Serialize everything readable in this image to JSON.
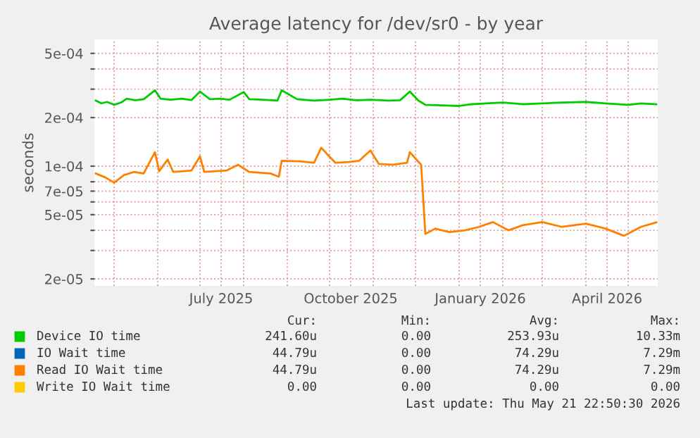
{
  "chart_data": {
    "type": "line",
    "title": "Average latency for /dev/sr0 - by year",
    "ylabel": "seconds",
    "log": "y",
    "grid": true,
    "legend": "bottom",
    "line_style": "solid",
    "marker": "none",
    "x": [
      "2025-04-18",
      "2025-04-22",
      "2025-04-26",
      "2025-05-01",
      "2025-05-06",
      "2025-05-10",
      "2025-05-16",
      "2025-05-22",
      "2025-05-30",
      "2025-06-03",
      "2025-06-10",
      "2025-06-18",
      "2025-06-25",
      "2025-07-01",
      "2025-07-08",
      "2025-07-15",
      "2025-07-22",
      "2025-08-01",
      "2025-08-05",
      "2025-08-15",
      "2025-08-25",
      "2025-08-28",
      "2025-09-08",
      "2025-09-20",
      "2025-10-01",
      "2025-10-10",
      "2025-10-20",
      "2025-10-30",
      "2025-11-12",
      "2025-11-20",
      "2025-11-27",
      "2025-12-03",
      "2025-12-08",
      "2025-12-20",
      "2026-01-01",
      "2026-01-10",
      "2026-01-20",
      "2026-02-01",
      "2026-02-15",
      "2026-03-01",
      "2026-03-15",
      "2026-04-01",
      "2026-04-15",
      "2026-05-01",
      "2026-05-10",
      "2026-05-21"
    ],
    "series": [
      {
        "name": "Device IO time",
        "color": "#00cc00",
        "values": [
          0.000255,
          0.000245,
          0.00025,
          0.00024,
          0.000248,
          0.000262,
          0.000256,
          0.00026,
          0.000295,
          0.000262,
          0.000258,
          0.000262,
          0.000257,
          0.00029,
          0.00026,
          0.000262,
          0.000258,
          0.000288,
          0.00026,
          0.000258,
          0.000255,
          0.000295,
          0.00026,
          0.000255,
          0.000258,
          0.000262,
          0.000256,
          0.000258,
          0.000255,
          0.000256,
          0.00029,
          0.000255,
          0.00024,
          0.000238,
          0.000236,
          0.000242,
          0.000245,
          0.000248,
          0.000242,
          0.000245,
          0.000248,
          0.00025,
          0.000245,
          0.00024,
          0.000245,
          0.000242
        ]
      },
      {
        "name": "IO Wait time",
        "color": "#0066b3",
        "values": [
          null,
          null,
          null,
          null,
          null,
          null,
          null,
          null,
          null,
          null,
          null,
          null,
          null,
          null,
          null,
          null,
          null,
          null,
          null,
          null,
          null,
          null,
          null,
          null,
          null,
          null,
          null,
          null,
          null,
          null,
          null,
          null,
          null,
          null,
          null,
          null,
          null,
          null,
          null,
          null,
          null,
          null,
          null,
          null,
          null,
          null
        ]
      },
      {
        "name": "Read IO Wait time",
        "color": "#ff8000",
        "x": [
          "2025-04-18",
          "2025-04-25",
          "2025-05-01",
          "2025-05-08",
          "2025-05-15",
          "2025-05-22",
          "2025-05-30",
          "2025-06-02",
          "2025-06-08",
          "2025-06-12",
          "2025-06-25",
          "2025-07-01",
          "2025-07-04",
          "2025-07-20",
          "2025-07-28",
          "2025-08-05",
          "2025-08-20",
          "2025-08-26",
          "2025-08-28",
          "2025-09-10",
          "2025-09-20",
          "2025-09-25",
          "2025-10-05",
          "2025-10-15",
          "2025-10-22",
          "2025-10-30",
          "2025-11-05",
          "2025-11-15",
          "2025-11-25",
          "2025-11-27",
          "2025-12-05",
          "2025-12-08",
          "2025-12-15",
          "2025-12-25",
          "2026-01-05",
          "2026-01-15",
          "2026-01-25",
          "2026-02-05",
          "2026-02-15",
          "2026-03-01",
          "2026-03-15",
          "2026-04-01",
          "2026-04-15",
          "2026-04-28",
          "2026-05-10",
          "2026-05-21"
        ],
        "values": [
          9e-05,
          8.5e-05,
          7.9e-05,
          8.8e-05,
          9.2e-05,
          9e-05,
          0.000122,
          9.3e-05,
          0.00011,
          9.2e-05,
          9.4e-05,
          0.000115,
          9.2e-05,
          9.4e-05,
          0.000102,
          9.2e-05,
          9e-05,
          8.6e-05,
          0.000108,
          0.000107,
          0.000105,
          0.00013,
          0.000105,
          0.000106,
          0.000108,
          0.000125,
          0.000103,
          0.000102,
          0.000105,
          0.000122,
          0.000102,
          3.8e-05,
          4.1e-05,
          3.9e-05,
          4e-05,
          4.2e-05,
          4.5e-05,
          4e-05,
          4.3e-05,
          4.5e-05,
          4.2e-05,
          4.4e-05,
          4.1e-05,
          3.7e-05,
          4.2e-05,
          4.48e-05
        ]
      },
      {
        "name": "Write IO Wait time",
        "color": "#ffcc00",
        "values": [
          null,
          null,
          null,
          null,
          null,
          null,
          null,
          null,
          null,
          null,
          null,
          null,
          null,
          null,
          null,
          null,
          null,
          null,
          null,
          null,
          null,
          null,
          null,
          null,
          null,
          null,
          null,
          null,
          null,
          null,
          null,
          null,
          null,
          null,
          null,
          null,
          null,
          null,
          null,
          null,
          null,
          null,
          null,
          null,
          null,
          null
        ]
      }
    ],
    "xlim": [
      "2025-04-17",
      "2026-05-22"
    ],
    "xticks": [
      {
        "value": "2025-05-01",
        "label": null
      },
      {
        "value": "2025-06-01",
        "label": null
      },
      {
        "value": "2025-07-01",
        "label": null
      },
      {
        "value": "2025-07-16",
        "label": "July 2025"
      },
      {
        "value": "2025-08-01",
        "label": null
      },
      {
        "value": "2025-09-01",
        "label": null
      },
      {
        "value": "2025-10-01",
        "label": null
      },
      {
        "value": "2025-10-16",
        "label": "October 2025"
      },
      {
        "value": "2025-11-01",
        "label": null
      },
      {
        "value": "2025-12-01",
        "label": null
      },
      {
        "value": "2026-01-01",
        "label": null
      },
      {
        "value": "2026-01-16",
        "label": "January 2026"
      },
      {
        "value": "2026-02-01",
        "label": null
      },
      {
        "value": "2026-03-01",
        "label": null
      },
      {
        "value": "2026-04-01",
        "label": null
      },
      {
        "value": "2026-04-16",
        "label": "April 2026"
      },
      {
        "value": "2026-05-01",
        "label": null
      }
    ],
    "ylim": [
      1.81e-05,
      0.00061
    ],
    "yticks": [
      {
        "value": 2e-05,
        "label": "2e-05"
      },
      {
        "value": 3e-05,
        "label": null
      },
      {
        "value": 4e-05,
        "label": null
      },
      {
        "value": 5e-05,
        "label": "5e-05"
      },
      {
        "value": 6e-05,
        "label": null
      },
      {
        "value": 7e-05,
        "label": "7e-05"
      },
      {
        "value": 8e-05,
        "label": null
      },
      {
        "value": 0.0001,
        "label": "1e-04"
      },
      {
        "value": 0.0002,
        "label": "2e-04"
      },
      {
        "value": 0.0003,
        "label": null
      },
      {
        "value": 0.0004,
        "label": null
      },
      {
        "value": 0.0005,
        "label": "5e-04"
      }
    ],
    "annotations": [
      "Cur:",
      "Min:",
      "Avg:",
      "Max:",
      "241.60u",
      "0.00",
      "253.93u",
      "10.33m",
      "44.79u",
      "0.00",
      "74.29u",
      "7.29m",
      "44.79u",
      "0.00",
      "74.29u",
      "7.29m",
      "0.00",
      "0.00",
      "0.00",
      "0.00",
      "Last update: Thu May 21 22:50:30 2026"
    ]
  }
}
